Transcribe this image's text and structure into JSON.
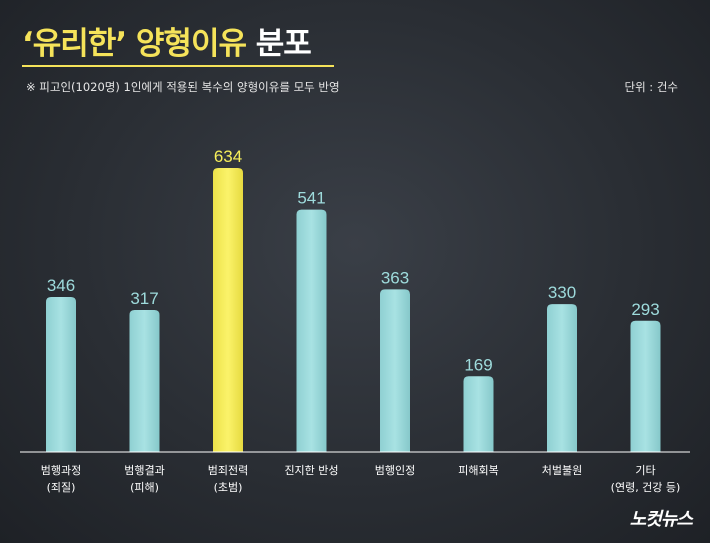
{
  "header": {
    "title_highlight": "‘유리한’ 양형이유",
    "title_rest": " 분포",
    "note": "※ 피고인(1020명) 1인에게 적용된 복수의 양형이유를 모두 반영",
    "unit": "단위 : 건수"
  },
  "brand": {
    "logo": "노컷뉴스"
  },
  "colors": {
    "bar": "#9edbdc",
    "bar_highlight": "#f7ef5a",
    "label": "#9edbdc",
    "label_highlight": "#f7ef5a",
    "title_highlight": "#f5e35a"
  },
  "chart_data": {
    "type": "bar",
    "categories": [
      [
        "범행과정",
        "(죄질)"
      ],
      [
        "범행결과",
        "(피해)"
      ],
      [
        "범죄전력",
        "(초범)"
      ],
      [
        "진지한 반성"
      ],
      [
        "범행인정"
      ],
      [
        "피해회복"
      ],
      [
        "처벌불원"
      ],
      [
        "기타",
        "(연령, 건강 등)"
      ]
    ],
    "values": [
      346,
      317,
      634,
      541,
      363,
      169,
      330,
      293
    ],
    "highlight_index": 2,
    "ylim": [
      0,
      700
    ],
    "grid": false,
    "data_labels": true
  }
}
